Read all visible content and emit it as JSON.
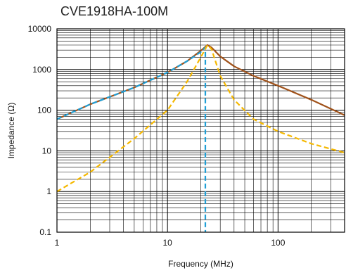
{
  "chart_data": {
    "type": "line",
    "title": "CVE1918HA-100M",
    "xlabel": "Frequency (MHz)",
    "ylabel": "Impedance (Ω)",
    "x_scale": "log",
    "y_scale": "log",
    "xlim": [
      1,
      400
    ],
    "ylim": [
      0.1,
      10000
    ],
    "x_ticks": [
      "1",
      "10",
      "100"
    ],
    "y_ticks": [
      "0.1",
      "1",
      "10",
      "100",
      "1000",
      "10000"
    ],
    "grid": true,
    "colors": {
      "brown": "#a0521a",
      "blue": "#1f9fd6",
      "yellow": "#f5b800"
    },
    "series": [
      {
        "color": "#a0521a",
        "style": "solid",
        "x": [
          1,
          2,
          5,
          10,
          15,
          20,
          23,
          25,
          30,
          40,
          60,
          100,
          200,
          400
        ],
        "y": [
          60,
          140,
          360,
          850,
          1600,
          2900,
          4000,
          3500,
          2100,
          1200,
          700,
          400,
          180,
          75
        ]
      },
      {
        "color": "#1f9fd6",
        "style": "dashed",
        "x": [
          1,
          2,
          5,
          10,
          15,
          20,
          22,
          22,
          22
        ],
        "y": [
          60,
          140,
          360,
          850,
          1600,
          2700,
          3500,
          1000,
          0.1
        ]
      },
      {
        "color": "#f5b800",
        "style": "dashed",
        "x": [
          1,
          2,
          5,
          10,
          15,
          20,
          23,
          25,
          30,
          40,
          60,
          100,
          200,
          400
        ],
        "y": [
          1,
          3,
          20,
          100,
          500,
          2000,
          4000,
          3200,
          700,
          180,
          60,
          30,
          15,
          9
        ]
      }
    ]
  }
}
